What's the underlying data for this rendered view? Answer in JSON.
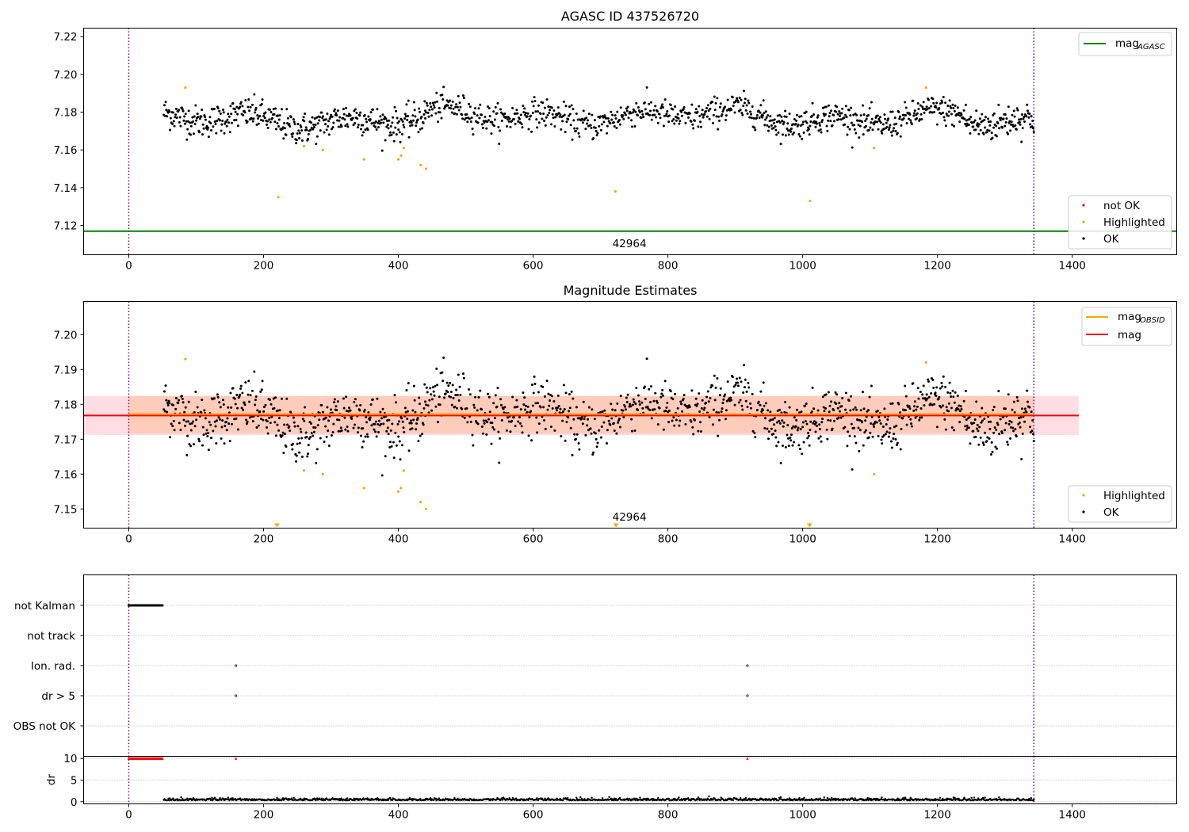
{
  "figure": {
    "window_title": ""
  },
  "colors": {
    "ok": "#000000",
    "highlighted": "#ffa500",
    "not_ok": "#ff0000",
    "mag_agasc": "#008000",
    "mag_obsid": "#ffa500",
    "mag": "#ff0000",
    "obs_boundary": "#800080",
    "band_mag": "#ffb6c1",
    "band_obsid": "#ffb68c",
    "grid": "#b0b0b0"
  },
  "chart_data": [
    {
      "id": "top",
      "type": "scatter",
      "title": "AGASC ID 437526720",
      "xlim": [
        -67,
        1555
      ],
      "ylim": [
        7.1045,
        7.2245
      ],
      "xticks": [
        0,
        200,
        400,
        600,
        800,
        1000,
        1200,
        1400
      ],
      "yticks": [
        7.12,
        7.14,
        7.16,
        7.18,
        7.2,
        7.22
      ],
      "ytick_labels": [
        "7.12",
        "7.14",
        "7.16",
        "7.18",
        "7.20",
        "7.22"
      ],
      "mag_agasc": 7.117,
      "obs_boundaries": [
        0,
        1343
      ],
      "obsid_label": {
        "text": "42964",
        "x": 670
      },
      "series": [
        {
          "name": "not OK",
          "style": "not_ok",
          "points": []
        },
        {
          "name": "Highlighted",
          "style": "highlighted",
          "points": [
            [
              84,
              7.193
            ],
            [
              222,
              7.135
            ],
            [
              260,
              7.162
            ],
            [
              288,
              7.16
            ],
            [
              349,
              7.155
            ],
            [
              400,
              7.155
            ],
            [
              404,
              7.157
            ],
            [
              408,
              7.161
            ],
            [
              433,
              7.152
            ],
            [
              441,
              7.15
            ],
            [
              722,
              7.138
            ],
            [
              1011,
              7.133
            ],
            [
              1106,
              7.161
            ],
            [
              1183,
              7.193
            ]
          ]
        },
        {
          "name": "OK",
          "style": "ok",
          "segments": [
            {
              "x0": 52,
              "x1": 440,
              "base": 7.176,
              "noise": 0.0055,
              "n": 420
            },
            {
              "x0": 440,
              "x1": 940,
              "base": 7.178,
              "noise": 0.005,
              "n": 480
            },
            {
              "x0": 940,
              "x1": 1243,
              "base": 7.177,
              "noise": 0.005,
              "n": 330
            },
            {
              "x0": 1243,
              "x1": 1343,
              "base": 7.174,
              "noise": 0.006,
              "n": 110
            }
          ]
        }
      ],
      "legend_upper": [
        {
          "label": "mag",
          "sub": "AGASC",
          "style": "mag_agasc"
        }
      ],
      "legend_lower": [
        {
          "label": "not OK",
          "style": "not_ok"
        },
        {
          "label": "Highlighted",
          "style": "highlighted"
        },
        {
          "label": "OK",
          "style": "ok"
        }
      ]
    },
    {
      "id": "middle",
      "type": "scatter",
      "title": "Magnitude Estimates",
      "xlim": [
        -67,
        1555
      ],
      "ylim": [
        7.1445,
        7.2095
      ],
      "xticks": [
        0,
        200,
        400,
        600,
        800,
        1000,
        1200,
        1400
      ],
      "yticks": [
        7.15,
        7.16,
        7.17,
        7.18,
        7.19,
        7.2
      ],
      "ytick_labels": [
        "7.15",
        "7.16",
        "7.17",
        "7.18",
        "7.19",
        "7.20"
      ],
      "mag": 7.1768,
      "mag_obsid": 7.1772,
      "band_mag": [
        7.1712,
        7.1824
      ],
      "band_obsid": [
        7.1716,
        7.1824
      ],
      "band_mag_x": [
        -67,
        1410
      ],
      "band_obsid_x": [
        0,
        1343
      ],
      "obs_boundaries": [
        0,
        1343
      ],
      "obsid_label": {
        "text": "42964",
        "x": 670
      },
      "below_range_markers": [
        220,
        723,
        1010
      ],
      "series": [
        {
          "name": "Highlighted",
          "style": "highlighted",
          "points": [
            [
              84,
              7.193
            ],
            [
              260,
              7.161
            ],
            [
              288,
              7.16
            ],
            [
              349,
              7.156
            ],
            [
              400,
              7.155
            ],
            [
              404,
              7.156
            ],
            [
              408,
              7.161
            ],
            [
              433,
              7.152
            ],
            [
              441,
              7.15
            ],
            [
              1106,
              7.16
            ],
            [
              1183,
              7.192
            ]
          ]
        },
        {
          "name": "OK",
          "style": "ok",
          "same_as": "top"
        }
      ],
      "legend_upper": [
        {
          "label": "mag",
          "sub": "OBSID",
          "style": "mag_obsid"
        },
        {
          "label": "mag",
          "sub": "",
          "style": "mag"
        }
      ],
      "legend_lower": [
        {
          "label": "Highlighted",
          "style": "highlighted"
        },
        {
          "label": "OK",
          "style": "ok"
        }
      ]
    },
    {
      "id": "flags",
      "type": "scatter",
      "xlim": [
        -67,
        1555
      ],
      "categories": [
        "not Kalman",
        "not track",
        "Ion. rad.",
        "dr > 5",
        "OBS not OK"
      ],
      "obs_boundaries": [
        0,
        1343
      ],
      "flag_points": {
        "not Kalman": {
          "range": [
            0,
            50
          ],
          "step": 1
        },
        "not track": {
          "points": []
        },
        "Ion. rad.": {
          "points": [
            159,
            918
          ]
        },
        "dr > 5": {
          "points": [
            159,
            918
          ]
        },
        "OBS not OK": {
          "points": []
        }
      }
    },
    {
      "id": "dr",
      "type": "scatter",
      "ylabel": "dr",
      "xlim": [
        -67,
        1555
      ],
      "ylim": [
        -0.5,
        10.5
      ],
      "xticks": [
        0,
        200,
        400,
        600,
        800,
        1000,
        1200,
        1400
      ],
      "yticks": [
        0,
        5,
        10
      ],
      "ytick_labels": [
        "0",
        "5",
        "10"
      ],
      "obs_boundaries": [
        0,
        1343
      ],
      "clipped_markers": {
        "range": [
          0,
          50
        ],
        "extra": [
          159,
          918
        ],
        "value": 10
      },
      "ok_segment": {
        "x0": 52,
        "x1": 1343,
        "base": 0.3,
        "noise": 0.25,
        "n": 1300
      }
    }
  ]
}
